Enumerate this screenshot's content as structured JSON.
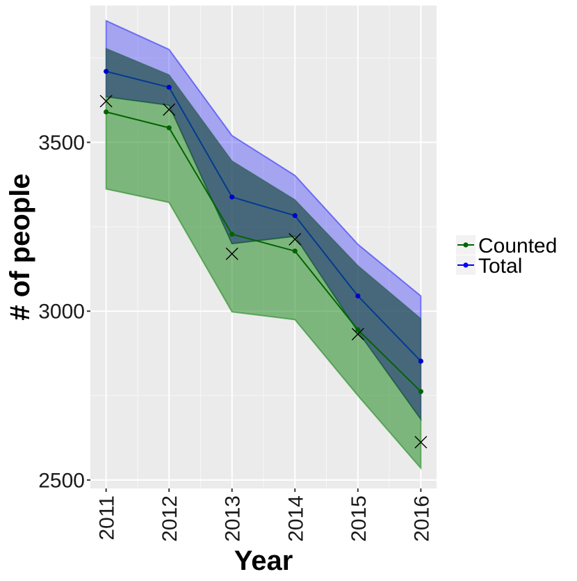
{
  "chart_data": {
    "type": "line",
    "title": "",
    "xlabel": "Year",
    "ylabel": "# of people",
    "x": [
      2011,
      2012,
      2013,
      2014,
      2015,
      2016
    ],
    "x_tick_labels": [
      "2011",
      "2012",
      "2013",
      "2014",
      "2015",
      "2016"
    ],
    "y_ticks": [
      2500,
      3000,
      3500
    ],
    "y_tick_labels": [
      "2500",
      "3000",
      "3500"
    ],
    "xlim": [
      2010.75,
      2016.25
    ],
    "ylim": [
      2475,
      3905
    ],
    "grid": true,
    "legend_position": "right",
    "series": [
      {
        "name": "Counted",
        "color": "#006400",
        "band_color": "#228B22",
        "values": [
          3590,
          3543,
          3228,
          3178,
          2945,
          2762
        ],
        "lower": [
          3362,
          3322,
          2998,
          2975,
          2750,
          2535
        ],
        "upper": [
          3635,
          3610,
          3200,
          3222,
          2940,
          2680
        ]
      },
      {
        "name": "Total",
        "color": "#0000cd",
        "band_color": "#0000ff",
        "values": [
          3710,
          3663,
          3338,
          3283,
          3045,
          2852
        ],
        "lower": [
          3635,
          3610,
          3200,
          3222,
          2940,
          2680
        ],
        "upper": [
          3860,
          3775,
          3520,
          3402,
          3198,
          3045
        ]
      }
    ],
    "overlap_band": {
      "color": "#1f4f48",
      "upper": [
        3778,
        3700,
        3445,
        3330,
        3135,
        2978
      ]
    },
    "markers": {
      "symbol": "x",
      "color": "#000000",
      "x": [
        2011,
        2012,
        2013,
        2014,
        2015,
        2016
      ],
      "values": [
        3622,
        3597,
        3170,
        3213,
        2932,
        2612
      ]
    },
    "colors": {
      "panel_bg": "#ebebeb",
      "grid_major": "#ffffff",
      "legend_key_bg": "#f2f2f2"
    }
  }
}
